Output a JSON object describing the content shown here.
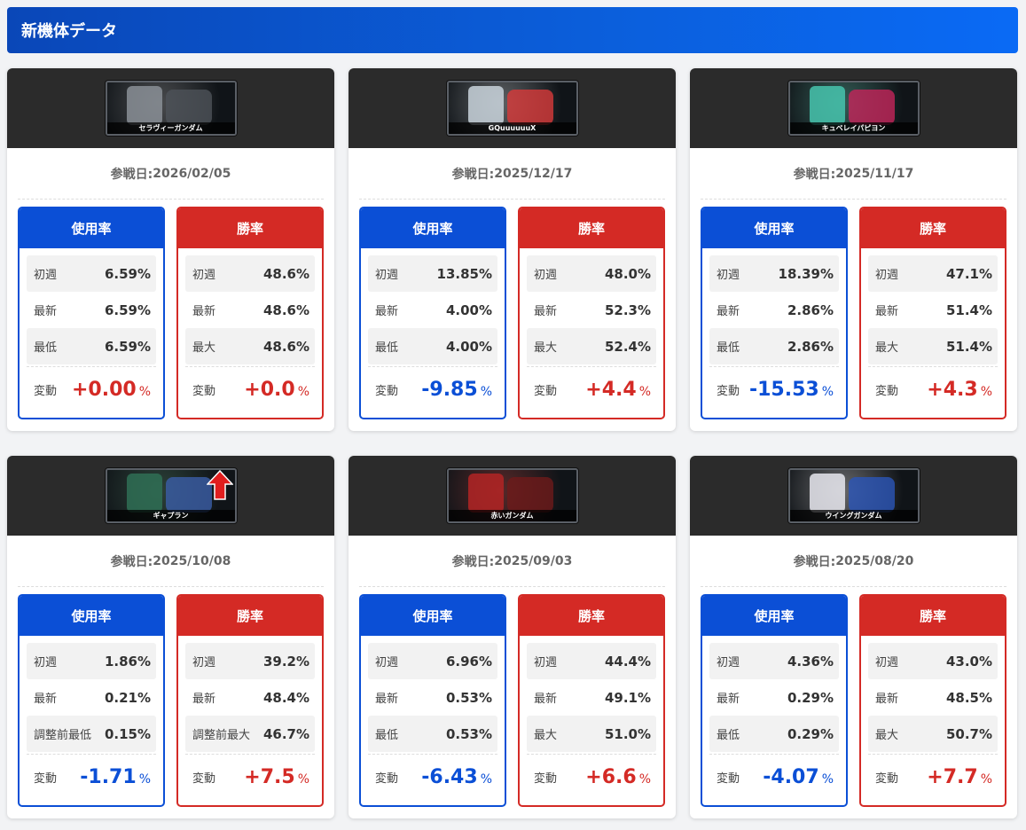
{
  "header": {
    "title": "新機体データ"
  },
  "labels": {
    "date_prefix": "参戦日: ",
    "usage": "使用率",
    "win": "勝率",
    "change": "変動",
    "pct": "%"
  },
  "cards": [
    {
      "name": "セラヴィーガンダム",
      "date": "2026/02/05",
      "colors": [
        "#8a8f96",
        "#4e5359"
      ],
      "usage": {
        "rows": [
          [
            "初週",
            "6.59%"
          ],
          [
            "最新",
            "6.59%"
          ],
          [
            "最低",
            "6.59%"
          ]
        ],
        "change": "+0.00",
        "sign": "pos"
      },
      "win": {
        "rows": [
          [
            "初週",
            "48.6%"
          ],
          [
            "最新",
            "48.6%"
          ],
          [
            "最大",
            "48.6%"
          ]
        ],
        "change": "+0.0",
        "sign": "pos"
      }
    },
    {
      "name": "GQuuuuuuX",
      "date": "2025/12/17",
      "colors": [
        "#c9d4dc",
        "#d83a3a"
      ],
      "usage": {
        "rows": [
          [
            "初週",
            "13.85%"
          ],
          [
            "最新",
            "4.00%"
          ],
          [
            "最低",
            "4.00%"
          ]
        ],
        "change": "-9.85",
        "sign": "neg"
      },
      "win": {
        "rows": [
          [
            "初週",
            "48.0%"
          ],
          [
            "最新",
            "52.3%"
          ],
          [
            "最大",
            "52.4%"
          ]
        ],
        "change": "+4.4",
        "sign": "pos"
      }
    },
    {
      "name": "キュベレイパピヨン",
      "date": "2025/11/17",
      "colors": [
        "#47c4ae",
        "#c4245a"
      ],
      "usage": {
        "rows": [
          [
            "初週",
            "18.39%"
          ],
          [
            "最新",
            "2.86%"
          ],
          [
            "最低",
            "2.86%"
          ]
        ],
        "change": "-15.53",
        "sign": "neg"
      },
      "win": {
        "rows": [
          [
            "初週",
            "47.1%"
          ],
          [
            "最新",
            "51.4%"
          ],
          [
            "最大",
            "51.4%"
          ]
        ],
        "change": "+4.3",
        "sign": "pos"
      }
    },
    {
      "name": "ギャプラン",
      "date": "2025/10/08",
      "colors": [
        "#2f6f55",
        "#3b5ea8"
      ],
      "arrow": true,
      "usage": {
        "rows": [
          [
            "初週",
            "1.86%"
          ],
          [
            "最新",
            "0.21%"
          ],
          [
            "調整前最低",
            "0.15%"
          ]
        ],
        "change": "-1.71",
        "sign": "neg"
      },
      "win": {
        "rows": [
          [
            "初週",
            "39.2%"
          ],
          [
            "最新",
            "48.4%"
          ],
          [
            "調整前最大",
            "46.7%"
          ]
        ],
        "change": "+7.5",
        "sign": "pos"
      }
    },
    {
      "name": "赤いガンダム",
      "date": "2025/09/03",
      "colors": [
        "#b32424",
        "#6e1a1a"
      ],
      "usage": {
        "rows": [
          [
            "初週",
            "6.96%"
          ],
          [
            "最新",
            "0.53%"
          ],
          [
            "最低",
            "0.53%"
          ]
        ],
        "change": "-6.43",
        "sign": "neg"
      },
      "win": {
        "rows": [
          [
            "初週",
            "44.4%"
          ],
          [
            "最新",
            "49.1%"
          ],
          [
            "最大",
            "51.0%"
          ]
        ],
        "change": "+6.6",
        "sign": "pos"
      }
    },
    {
      "name": "ウイングガンダム",
      "date": "2025/08/20",
      "colors": [
        "#e8e8ee",
        "#2a55b8"
      ],
      "usage": {
        "rows": [
          [
            "初週",
            "4.36%"
          ],
          [
            "最新",
            "0.29%"
          ],
          [
            "最低",
            "0.29%"
          ]
        ],
        "change": "-4.07",
        "sign": "neg"
      },
      "win": {
        "rows": [
          [
            "初週",
            "43.0%"
          ],
          [
            "最新",
            "48.5%"
          ],
          [
            "最大",
            "50.7%"
          ]
        ],
        "change": "+7.7",
        "sign": "pos"
      }
    }
  ]
}
